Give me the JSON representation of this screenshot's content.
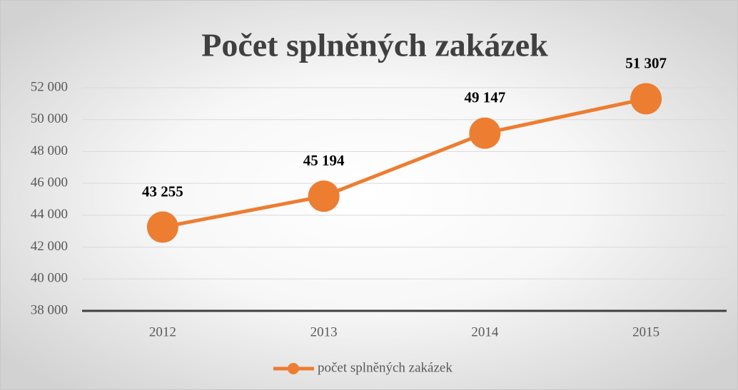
{
  "chart_data": {
    "type": "line",
    "title": "Počet splněných zakázek",
    "categories": [
      "2012",
      "2013",
      "2014",
      "2015"
    ],
    "series": [
      {
        "name": "počet splněných zakázek",
        "color": "#ed7d31",
        "values": [
          43255,
          45194,
          49147,
          51307
        ],
        "value_labels": [
          "43 255",
          "45 194",
          "49 147",
          "51 307"
        ]
      }
    ],
    "ylim": [
      38000,
      52000
    ],
    "yticks": [
      {
        "value": 38000,
        "label": "38 000"
      },
      {
        "value": 40000,
        "label": "40 000"
      },
      {
        "value": 42000,
        "label": "42 000"
      },
      {
        "value": 44000,
        "label": "44 000"
      },
      {
        "value": 46000,
        "label": "46 000"
      },
      {
        "value": 48000,
        "label": "48 000"
      },
      {
        "value": 50000,
        "label": "50 000"
      },
      {
        "value": 52000,
        "label": "52 000"
      }
    ],
    "grid": true,
    "legend": "bottom"
  }
}
